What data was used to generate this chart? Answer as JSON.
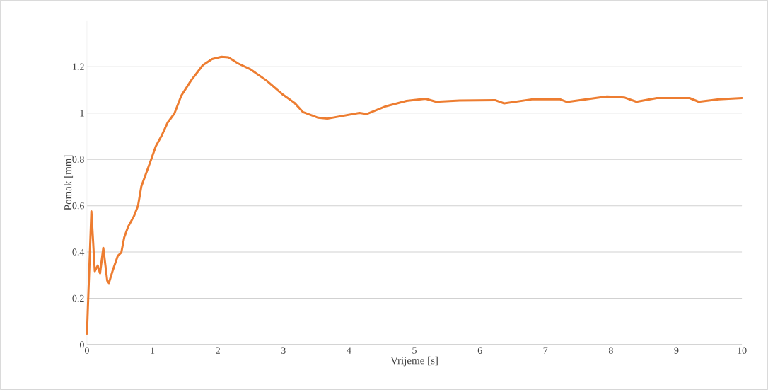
{
  "chart_data": {
    "type": "line",
    "xlabel": "Vrijeme [s]",
    "ylabel": "Pomak [mm]",
    "x": [
      0,
      0.068,
      0.12,
      0.165,
      0.2,
      0.25,
      0.31,
      0.335,
      0.39,
      0.47,
      0.525,
      0.57,
      0.63,
      0.72,
      0.78,
      0.83,
      0.975,
      1.05,
      1.14,
      1.23,
      1.335,
      1.44,
      1.59,
      1.77,
      1.91,
      2.055,
      2.16,
      2.31,
      2.49,
      2.74,
      2.99,
      3.17,
      3.3,
      3.53,
      3.67,
      4.16,
      4.27,
      4.57,
      4.88,
      5.17,
      5.33,
      5.69,
      6.23,
      6.37,
      6.81,
      7.22,
      7.33,
      7.94,
      8.21,
      8.39,
      8.7,
      9.2,
      9.34,
      9.65,
      10
    ],
    "series": [
      {
        "color": "#ed7d31",
        "values": [
          0.047,
          0.576,
          0.317,
          0.342,
          0.308,
          0.418,
          0.276,
          0.266,
          0.317,
          0.383,
          0.398,
          0.464,
          0.51,
          0.556,
          0.6,
          0.683,
          0.795,
          0.856,
          0.902,
          0.958,
          0.998,
          1.075,
          1.141,
          1.207,
          1.233,
          1.243,
          1.241,
          1.214,
          1.19,
          1.141,
          1.08,
          1.044,
          1.004,
          0.98,
          0.976,
          1.001,
          0.996,
          1.03,
          1.053,
          1.062,
          1.049,
          1.054,
          1.056,
          1.042,
          1.06,
          1.06,
          1.048,
          1.072,
          1.067,
          1.049,
          1.065,
          1.065,
          1.049,
          1.06,
          1.065
        ]
      }
    ],
    "xlim": [
      0,
      10
    ],
    "xticks": [
      0,
      1,
      2,
      3,
      4,
      5,
      6,
      7,
      8,
      9,
      10
    ],
    "ylim": [
      0,
      1.4
    ],
    "yticks": [
      0,
      0.2,
      0.4,
      0.6,
      0.8,
      1,
      1.2
    ],
    "grid": "y",
    "marker": "none",
    "line_style": "solid"
  }
}
